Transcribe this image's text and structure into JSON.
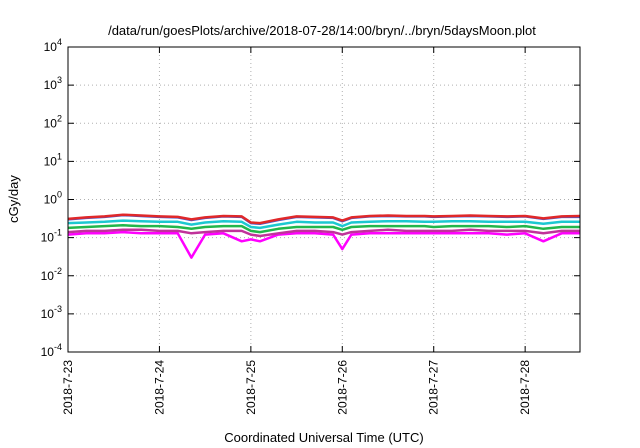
{
  "chart_data": {
    "type": "line",
    "title": "/data/run/goesPlots/archive/2018-07-28/14:00/bryn/../bryn/5daysMoon.plot",
    "xlabel": "Coordinated Universal Time (UTC)",
    "ylabel": "cGy/day",
    "yscale": "log",
    "ylim": [
      0.0001,
      10000
    ],
    "xlim": [
      0,
      5.6
    ],
    "grid": true,
    "legend": "none",
    "x_tick_labels": [
      "2018-7-23",
      "2018-7-24",
      "2018-7-25",
      "2018-7-26",
      "2018-7-27",
      "2018-7-28"
    ],
    "x_tick_values": [
      0,
      1,
      2,
      3,
      4,
      5
    ],
    "y_ticks": [
      {
        "value": 0.0001,
        "base": "10",
        "exp": "-4"
      },
      {
        "value": 0.001,
        "base": "10",
        "exp": "-3"
      },
      {
        "value": 0.01,
        "base": "10",
        "exp": "-2"
      },
      {
        "value": 0.1,
        "base": "10",
        "exp": "-1"
      },
      {
        "value": 1,
        "base": "10",
        "exp": "0"
      },
      {
        "value": 10,
        "base": "10",
        "exp": "1"
      },
      {
        "value": 100,
        "base": "10",
        "exp": "2"
      },
      {
        "value": 1000,
        "base": "10",
        "exp": "3"
      },
      {
        "value": 10000,
        "base": "10",
        "exp": "4"
      }
    ],
    "x": [
      0.0,
      0.2,
      0.4,
      0.6,
      0.8,
      1.0,
      1.2,
      1.35,
      1.5,
      1.7,
      1.9,
      2.0,
      2.1,
      2.3,
      2.5,
      2.7,
      2.9,
      3.0,
      3.1,
      3.3,
      3.5,
      3.7,
      3.9,
      4.0,
      4.2,
      4.4,
      4.6,
      4.8,
      5.0,
      5.2,
      5.4,
      5.6
    ],
    "series": [
      {
        "color": "#e0282a",
        "values": [
          0.31,
          0.34,
          0.36,
          0.4,
          0.38,
          0.36,
          0.35,
          0.3,
          0.34,
          0.37,
          0.36,
          0.25,
          0.24,
          0.3,
          0.36,
          0.35,
          0.34,
          0.28,
          0.34,
          0.37,
          0.38,
          0.37,
          0.37,
          0.36,
          0.37,
          0.38,
          0.37,
          0.36,
          0.37,
          0.32,
          0.36,
          0.37
        ]
      },
      {
        "color": "#3a5bdc",
        "values": [
          0.3,
          0.33,
          0.35,
          0.39,
          0.37,
          0.35,
          0.34,
          0.29,
          0.33,
          0.36,
          0.35,
          0.24,
          0.23,
          0.29,
          0.35,
          0.34,
          0.33,
          0.27,
          0.33,
          0.36,
          0.37,
          0.36,
          0.36,
          0.35,
          0.36,
          0.37,
          0.36,
          0.35,
          0.36,
          0.31,
          0.35,
          0.35
        ]
      },
      {
        "color": "#1cc8d0",
        "values": [
          0.24,
          0.25,
          0.26,
          0.28,
          0.27,
          0.26,
          0.26,
          0.22,
          0.25,
          0.27,
          0.26,
          0.19,
          0.18,
          0.22,
          0.26,
          0.25,
          0.25,
          0.2,
          0.25,
          0.26,
          0.27,
          0.27,
          0.26,
          0.26,
          0.27,
          0.27,
          0.26,
          0.26,
          0.26,
          0.23,
          0.26,
          0.26
        ]
      },
      {
        "color": "#22b64a",
        "values": [
          0.18,
          0.19,
          0.2,
          0.21,
          0.2,
          0.2,
          0.19,
          0.17,
          0.19,
          0.2,
          0.2,
          0.15,
          0.14,
          0.17,
          0.19,
          0.19,
          0.19,
          0.16,
          0.19,
          0.2,
          0.2,
          0.2,
          0.2,
          0.19,
          0.2,
          0.2,
          0.2,
          0.19,
          0.2,
          0.17,
          0.19,
          0.19
        ]
      },
      {
        "color": "#c0329a",
        "values": [
          0.14,
          0.15,
          0.15,
          0.16,
          0.16,
          0.15,
          0.15,
          0.13,
          0.14,
          0.15,
          0.15,
          0.12,
          0.11,
          0.13,
          0.15,
          0.15,
          0.14,
          0.12,
          0.14,
          0.15,
          0.16,
          0.15,
          0.15,
          0.15,
          0.15,
          0.16,
          0.15,
          0.15,
          0.15,
          0.13,
          0.15,
          0.15
        ]
      },
      {
        "color": "#ff00ff",
        "values": [
          0.12,
          0.13,
          0.13,
          0.14,
          0.13,
          0.13,
          0.13,
          0.03,
          0.12,
          0.13,
          0.08,
          0.09,
          0.08,
          0.12,
          0.13,
          0.13,
          0.12,
          0.05,
          0.12,
          0.13,
          0.13,
          0.13,
          0.13,
          0.13,
          0.13,
          0.13,
          0.13,
          0.12,
          0.13,
          0.08,
          0.13,
          0.13
        ]
      }
    ]
  }
}
